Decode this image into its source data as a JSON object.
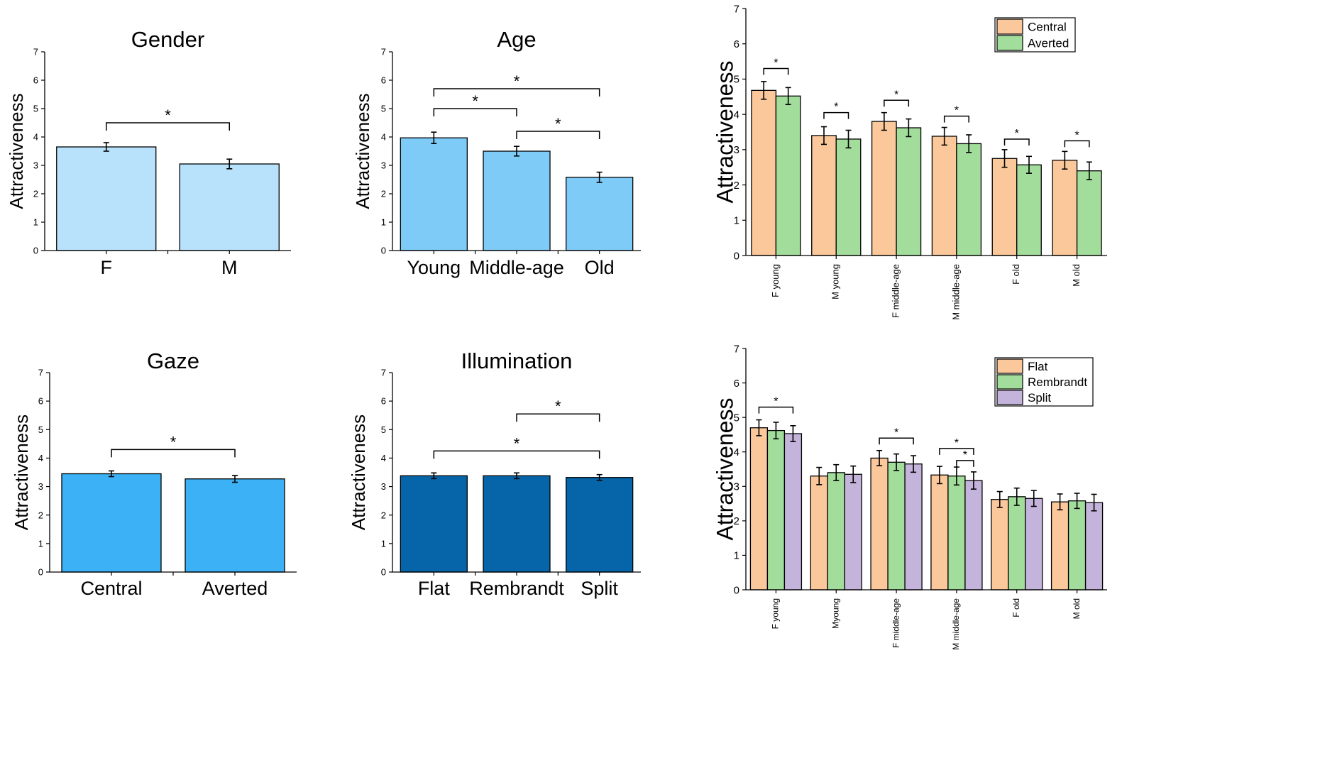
{
  "chart_data": [
    {
      "id": "gender",
      "type": "bar",
      "title": "Gender",
      "ylabel": "Attractiveness",
      "xlabel": "",
      "ylim": [
        0,
        7
      ],
      "yticks": [
        0,
        1,
        2,
        3,
        4,
        5,
        6,
        7
      ],
      "categories": [
        "F",
        "M"
      ],
      "values": [
        3.65,
        3.05
      ],
      "errors": [
        0.15,
        0.17
      ],
      "color": "#b8e2fb",
      "significance": [
        {
          "from": 0,
          "to": 1,
          "level": 4.5,
          "label": "*"
        }
      ]
    },
    {
      "id": "age",
      "type": "bar",
      "title": "Age",
      "ylabel": "Attractiveness",
      "xlabel": "",
      "ylim": [
        0,
        7
      ],
      "yticks": [
        0,
        1,
        2,
        3,
        4,
        5,
        6,
        7
      ],
      "categories": [
        "Young",
        "Middle-age",
        "Old"
      ],
      "values": [
        3.97,
        3.5,
        2.58
      ],
      "errors": [
        0.2,
        0.17,
        0.18
      ],
      "color": "#7fcbf8",
      "significance": [
        {
          "from": 0,
          "to": 2,
          "level": 5.7,
          "label": "*"
        },
        {
          "from": 0,
          "to": 1,
          "level": 5.0,
          "label": "*"
        },
        {
          "from": 1,
          "to": 2,
          "level": 4.2,
          "label": "*"
        }
      ]
    },
    {
      "id": "gaze",
      "type": "bar",
      "title": "Gaze",
      "ylabel": "Attractiveness",
      "xlabel": "",
      "ylim": [
        0,
        7
      ],
      "yticks": [
        0,
        1,
        2,
        3,
        4,
        5,
        6,
        7
      ],
      "categories": [
        "Central",
        "Averted"
      ],
      "values": [
        3.45,
        3.27
      ],
      "errors": [
        0.1,
        0.12
      ],
      "color": "#3cb1f5",
      "significance": [
        {
          "from": 0,
          "to": 1,
          "level": 4.3,
          "label": "*"
        }
      ]
    },
    {
      "id": "illumination",
      "type": "bar",
      "title": "Illumination",
      "ylabel": "Attractiveness",
      "xlabel": "",
      "ylim": [
        0,
        7
      ],
      "yticks": [
        0,
        1,
        2,
        3,
        4,
        5,
        6,
        7
      ],
      "categories": [
        "Flat",
        "Rembrandt",
        "Split"
      ],
      "values": [
        3.38,
        3.38,
        3.32
      ],
      "errors": [
        0.1,
        0.1,
        0.1
      ],
      "color": "#0565a8",
      "significance": [
        {
          "from": 1,
          "to": 2,
          "level": 5.55,
          "label": "*"
        },
        {
          "from": 0,
          "to": 2,
          "level": 4.25,
          "label": "*"
        }
      ]
    },
    {
      "id": "gaze-by-group",
      "type": "bar",
      "title": "",
      "ylabel": "Attractiveness",
      "xlabel": "",
      "ylim": [
        0,
        7
      ],
      "yticks": [
        0,
        1,
        2,
        3,
        4,
        5,
        6,
        7
      ],
      "categories": [
        "F young",
        "M young",
        "F middle-age",
        "M middle-age",
        "F old",
        "M old"
      ],
      "series": [
        {
          "name": "Central",
          "color": "#fbc89b",
          "values": [
            4.68,
            3.4,
            3.8,
            3.38,
            2.75,
            2.7
          ],
          "errors": [
            0.25,
            0.25,
            0.25,
            0.25,
            0.25,
            0.25
          ]
        },
        {
          "name": "Averted",
          "color": "#a3dd9c",
          "values": [
            4.52,
            3.3,
            3.62,
            3.17,
            2.57,
            2.4
          ],
          "errors": [
            0.24,
            0.25,
            0.25,
            0.25,
            0.24,
            0.25
          ]
        }
      ],
      "significance": [
        {
          "group": 0,
          "from": 0,
          "to": 1,
          "level": 5.3,
          "label": "*"
        },
        {
          "group": 1,
          "from": 0,
          "to": 1,
          "level": 4.05,
          "label": "*"
        },
        {
          "group": 2,
          "from": 0,
          "to": 1,
          "level": 4.4,
          "label": "*"
        },
        {
          "group": 3,
          "from": 0,
          "to": 1,
          "level": 3.95,
          "label": "*"
        },
        {
          "group": 4,
          "from": 0,
          "to": 1,
          "level": 3.3,
          "label": "*"
        },
        {
          "group": 5,
          "from": 0,
          "to": 1,
          "level": 3.25,
          "label": "*"
        }
      ],
      "legend_position": "top-right"
    },
    {
      "id": "illumination-by-group",
      "type": "bar",
      "title": "",
      "ylabel": "Attractiveness",
      "xlabel": "",
      "ylim": [
        0,
        7
      ],
      "yticks": [
        0,
        1,
        2,
        3,
        4,
        5,
        6,
        7
      ],
      "categories": [
        "F young",
        "Myoung",
        "F middle-age",
        "M middle-age",
        "F old",
        "M old"
      ],
      "series": [
        {
          "name": "Flat",
          "color": "#fbc89b",
          "values": [
            4.7,
            3.3,
            3.82,
            3.33,
            2.62,
            2.55
          ],
          "errors": [
            0.23,
            0.25,
            0.22,
            0.25,
            0.23,
            0.23
          ]
        },
        {
          "name": "Rembrandt",
          "color": "#a3dd9c",
          "values": [
            4.62,
            3.4,
            3.7,
            3.3,
            2.7,
            2.58
          ],
          "errors": [
            0.24,
            0.23,
            0.24,
            0.26,
            0.25,
            0.22
          ]
        },
        {
          "name": "Split",
          "color": "#c4b3db",
          "values": [
            4.53,
            3.35,
            3.65,
            3.17,
            2.65,
            2.53
          ],
          "errors": [
            0.23,
            0.24,
            0.24,
            0.25,
            0.23,
            0.24
          ]
        }
      ],
      "significance": [
        {
          "group": 0,
          "from": 0,
          "to": 2,
          "level": 5.3,
          "label": "*"
        },
        {
          "group": 2,
          "from": 0,
          "to": 2,
          "level": 4.4,
          "label": "*"
        },
        {
          "group": 3,
          "from": 0,
          "to": 2,
          "level": 4.1,
          "label": "*"
        },
        {
          "group": 3,
          "from": 1,
          "to": 2,
          "level": 3.75,
          "label": "*"
        }
      ],
      "legend_position": "top-right"
    }
  ]
}
